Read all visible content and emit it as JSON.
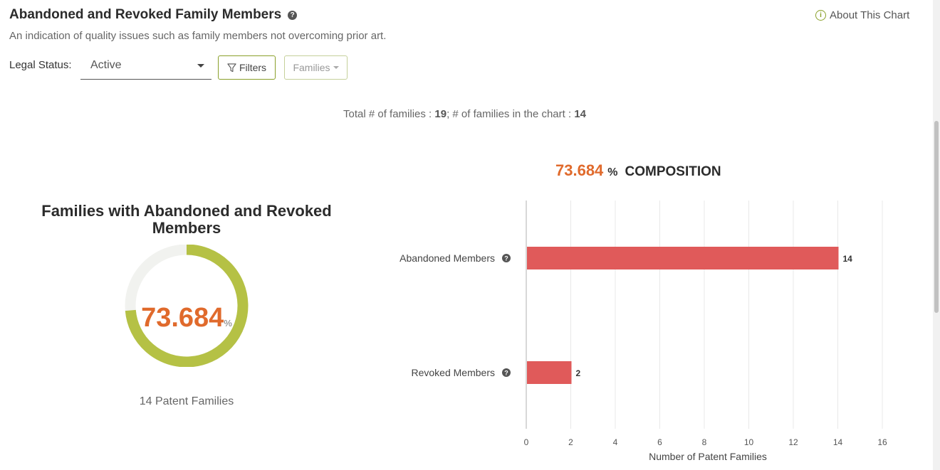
{
  "header": {
    "title": "Abandoned and Revoked Family Members",
    "subtitle": "An indication of quality issues such as family members not overcoming prior art.",
    "about_label": "About This Chart"
  },
  "controls": {
    "legal_status_label": "Legal Status:",
    "legal_status_value": "Active",
    "filters_label": "Filters",
    "families_label": "Families"
  },
  "summary": {
    "total_label": "Total # of families : ",
    "total_value": "19",
    "in_chart_label": "; # of families in the chart : ",
    "in_chart_value": "14"
  },
  "donut": {
    "title": "Families with Abandoned and Revoked Members",
    "value": "73.684",
    "unit": "%",
    "percent": 73.684,
    "caption": "14 Patent Families",
    "fill_color": "#b5c145",
    "track_color": "#f1f2ef"
  },
  "composition": {
    "value": "73.684",
    "unit": "%",
    "label": "COMPOSITION"
  },
  "chart_data": {
    "type": "bar",
    "orientation": "horizontal",
    "categories": [
      "Abandoned Members",
      "Revoked Members"
    ],
    "values": [
      14,
      2
    ],
    "xlabel": "Number of Patent Families",
    "xlim": [
      0,
      16
    ],
    "xticks": [
      0,
      2,
      4,
      6,
      8,
      10,
      12,
      14,
      16
    ],
    "grid": true,
    "bar_color": "#e05a5a"
  }
}
